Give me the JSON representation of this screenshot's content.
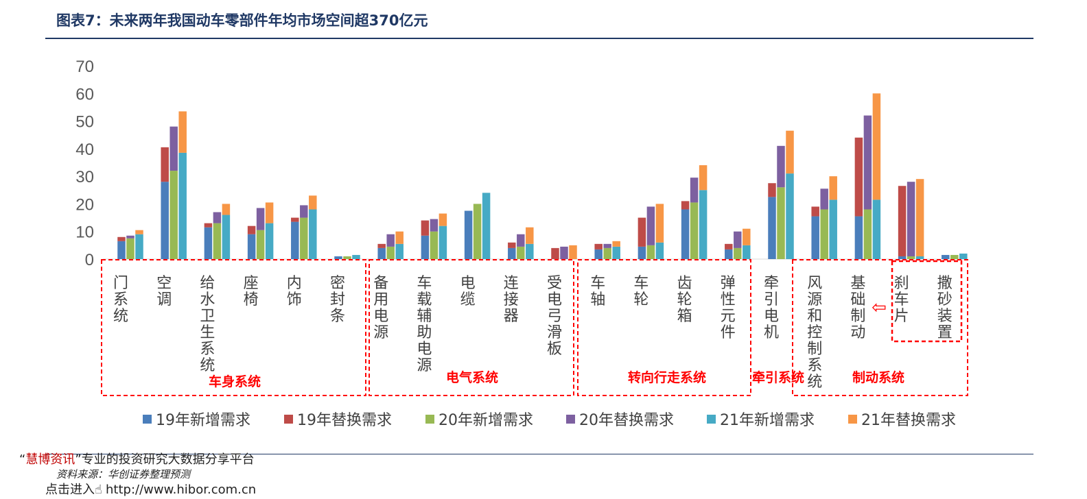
{
  "header": {
    "title": "图表7：未来两年我国动车零部件年均市场空间超370亿元"
  },
  "footer": {
    "brand_open": "“",
    "brand": "慧博资讯",
    "brand_close": "”",
    "platform": "专业的投资研究大数据分享平台",
    "source": "资料来源：华创证券整理预测",
    "link_prefix": "点击进入",
    "link": "http://www.hibor.com.cn"
  },
  "chart_data": {
    "type": "bar",
    "stacked_pairs": true,
    "title": "",
    "xlabel": "",
    "ylabel": "",
    "ylim": [
      0,
      70
    ],
    "yticks": [
      0,
      10,
      20,
      30,
      40,
      50,
      60,
      70
    ],
    "grid": false,
    "legend_position": "bottom",
    "categories": [
      "门系统",
      "空调",
      "给水卫生系统",
      "座椅",
      "内饰",
      "密封条",
      "备用电源",
      "车载辅助电源",
      "电缆",
      "连接器",
      "受电弓滑板",
      "车轴",
      "车轮",
      "齿轮箱",
      "弹性元件",
      "牵引电机",
      "风源和控制系统",
      "基础制动",
      "刹车片",
      "撒砂装置"
    ],
    "series": [
      {
        "name": "19年新增需求",
        "color": "#4a7ebb",
        "values": [
          6.5,
          28,
          11.5,
          9,
          13.5,
          1,
          4,
          8.5,
          17.5,
          4,
          0,
          3.5,
          4.5,
          18,
          3.5,
          22.5,
          15.5,
          15.5,
          1,
          1.5
        ]
      },
      {
        "name": "19年替换需求",
        "color": "#be4b48",
        "values": [
          1.5,
          12.5,
          1.5,
          3,
          1.5,
          0,
          1.5,
          5.5,
          0,
          2,
          4,
          2,
          10.5,
          3,
          2,
          5,
          3.5,
          28.5,
          25.5,
          0
        ]
      },
      {
        "name": "20年新增需求",
        "color": "#98b954",
        "values": [
          7.5,
          32,
          13,
          10.5,
          15,
          1,
          4.5,
          10,
          20,
          4.5,
          0,
          4,
          5,
          20.5,
          4,
          26,
          18,
          18,
          1,
          1.5
        ]
      },
      {
        "name": "20年替换需求",
        "color": "#7d60a0",
        "values": [
          1,
          16,
          4,
          8,
          4.5,
          0,
          4.5,
          4.5,
          0,
          4.5,
          4.5,
          1.5,
          14,
          9,
          6,
          15,
          7.5,
          34,
          27,
          0
        ]
      },
      {
        "name": "21年新增需求",
        "color": "#46aac5",
        "values": [
          9,
          38.5,
          16,
          13,
          18,
          1.5,
          5.5,
          12,
          24,
          5.5,
          0,
          4.5,
          6,
          25,
          5,
          31,
          21.5,
          21.5,
          1,
          2
        ]
      },
      {
        "name": "21年替换需求",
        "color": "#f79646",
        "values": [
          1.5,
          15,
          4,
          7.5,
          5,
          0,
          4.5,
          4.5,
          0,
          6,
          5,
          2,
          14,
          9,
          6,
          15.5,
          8.5,
          38.5,
          28,
          0
        ]
      }
    ],
    "groups": [
      {
        "label": "车身系统",
        "categories": [
          "门系统",
          "空调",
          "给水卫生系统",
          "座椅",
          "内饰",
          "密封条"
        ]
      },
      {
        "label": "电气系统",
        "categories": [
          "备用电源",
          "车载辅助电源",
          "电缆",
          "连接器",
          "受电弓滑板"
        ]
      },
      {
        "label": "转向行走系统",
        "categories": [
          "车轴",
          "车轮",
          "齿轮箱",
          "弹性元件"
        ]
      },
      {
        "label": "牵引系统",
        "categories": [
          "牵引电机"
        ]
      },
      {
        "label": "制动系统",
        "categories": [
          "风源和控制系统",
          "基础制动",
          "刹车片",
          "撒砂装置"
        ]
      }
    ],
    "annotation": {
      "symbol": "⇦",
      "from": "刹车片",
      "to": "基础制动"
    }
  }
}
